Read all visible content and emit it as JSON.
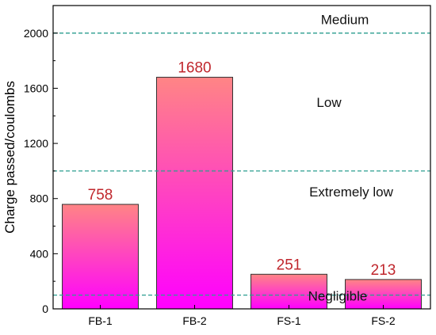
{
  "chart_data": {
    "type": "bar",
    "categories": [
      "FB-1",
      "FB-2",
      "FS-1",
      "FS-2"
    ],
    "values": [
      758,
      1680,
      251,
      213
    ],
    "title": "",
    "xlabel": "",
    "ylabel": "Charge passed/coulombs",
    "ylim": [
      0,
      2200
    ],
    "yticks": [
      0,
      400,
      800,
      1200,
      1600,
      2000
    ],
    "grid": false,
    "thresholds": [
      {
        "value": 100
      },
      {
        "value": 1000
      },
      {
        "value": 2000
      }
    ],
    "zones": [
      {
        "label": "Medium"
      },
      {
        "label": "Low"
      },
      {
        "label": "Extremely low"
      },
      {
        "label": "Negligible"
      }
    ],
    "colors": {
      "bar_top": "#ff8585",
      "bar_bottom": "#ff00ff",
      "bar_border": "#333333",
      "data_label": "#c0272d",
      "threshold_line": "#2a9d8f",
      "axis": "#000000"
    }
  }
}
